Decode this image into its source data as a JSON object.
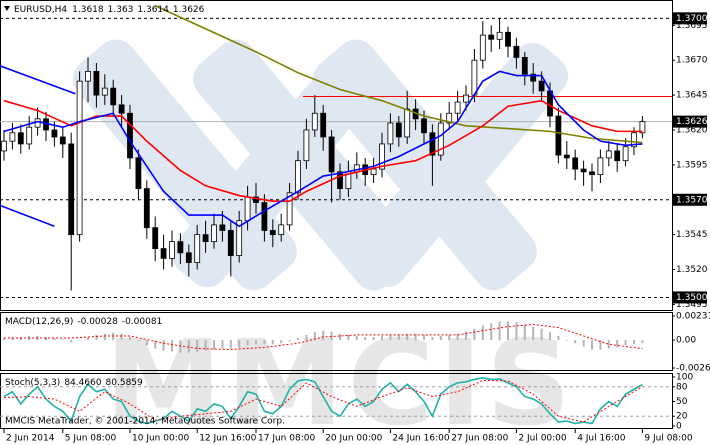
{
  "chart_data": [
    {
      "type": "candlestick",
      "title": "EURUSD,H4",
      "watermark": "MMCIS",
      "categories": [
        "2 Jun 2014",
        null,
        null,
        null,
        null,
        null,
        null,
        "5 Jun 08:00",
        null,
        null,
        null,
        null,
        null,
        null,
        null,
        "10 Jun 00:00",
        null,
        null,
        null,
        null,
        null,
        null,
        null,
        "12 Jun 16:00",
        null,
        null,
        null,
        null,
        null,
        null,
        "17 Jun 08:00",
        null,
        null,
        null,
        null,
        null,
        null,
        null,
        "20 Jun 00:00",
        null,
        null,
        null,
        null,
        null,
        null,
        null,
        "24 Jun 16:00",
        null,
        null,
        null,
        null,
        null,
        null,
        "27 Jun 08:00",
        null,
        null,
        null,
        null,
        null,
        null,
        null,
        "2 Jul 00:00",
        null,
        null,
        null,
        null,
        null,
        null,
        "4 Jul 16:00",
        null,
        null,
        null,
        null,
        null,
        null,
        null,
        "9 Jul 08:00"
      ],
      "ohlc": [
        [
          1.3605,
          1.362,
          1.3598,
          1.3612
        ],
        [
          1.3612,
          1.3625,
          1.3606,
          1.3618
        ],
        [
          1.3618,
          1.3624,
          1.3603,
          1.361
        ],
        [
          1.361,
          1.363,
          1.3606,
          1.3622
        ],
        [
          1.3622,
          1.3636,
          1.3616,
          1.3628
        ],
        [
          1.3628,
          1.3633,
          1.3612,
          1.362
        ],
        [
          1.362,
          1.3626,
          1.3608,
          1.3615
        ],
        [
          1.3615,
          1.3622,
          1.36,
          1.361
        ],
        [
          1.361,
          1.3618,
          1.3505,
          1.3545
        ],
        [
          1.3545,
          1.3662,
          1.354,
          1.3655
        ],
        [
          1.3655,
          1.3672,
          1.364,
          1.3662
        ],
        [
          1.3662,
          1.3668,
          1.3636,
          1.3645
        ],
        [
          1.3645,
          1.366,
          1.3638,
          1.365
        ],
        [
          1.365,
          1.3656,
          1.363,
          1.3638
        ],
        [
          1.3638,
          1.3645,
          1.3622,
          1.3632
        ],
        [
          1.3632,
          1.3638,
          1.3592,
          1.36
        ],
        [
          1.36,
          1.3606,
          1.357,
          1.3578
        ],
        [
          1.3578,
          1.3584,
          1.3542,
          1.355
        ],
        [
          1.355,
          1.3558,
          1.3526,
          1.3535
        ],
        [
          1.3535,
          1.3545,
          1.352,
          1.3528
        ],
        [
          1.3528,
          1.3548,
          1.3522,
          1.354
        ],
        [
          1.354,
          1.3546,
          1.3524,
          1.3532
        ],
        [
          1.3532,
          1.3538,
          1.3515,
          1.3525
        ],
        [
          1.3525,
          1.3552,
          1.352,
          1.3545
        ],
        [
          1.3545,
          1.3555,
          1.3532,
          1.354
        ],
        [
          1.354,
          1.356,
          1.3535,
          1.3552
        ],
        [
          1.3552,
          1.3562,
          1.354,
          1.3548
        ],
        [
          1.3548,
          1.3555,
          1.3515,
          1.353
        ],
        [
          1.353,
          1.3562,
          1.3525,
          1.3555
        ],
        [
          1.3555,
          1.358,
          1.3548,
          1.3572
        ],
        [
          1.3572,
          1.3582,
          1.356,
          1.3568
        ],
        [
          1.3568,
          1.3574,
          1.354,
          1.3548
        ],
        [
          1.3548,
          1.3556,
          1.3536,
          1.3545
        ],
        [
          1.3545,
          1.356,
          1.354,
          1.3552
        ],
        [
          1.3552,
          1.3582,
          1.3548,
          1.3575
        ],
        [
          1.3575,
          1.3605,
          1.357,
          1.3598
        ],
        [
          1.3598,
          1.3628,
          1.3592,
          1.362
        ],
        [
          1.362,
          1.3645,
          1.3615,
          1.3632
        ],
        [
          1.3632,
          1.3638,
          1.3605,
          1.3615
        ],
        [
          1.3615,
          1.362,
          1.3568,
          1.359
        ],
        [
          1.359,
          1.3596,
          1.357,
          1.3578
        ],
        [
          1.3578,
          1.3598,
          1.3572,
          1.359
        ],
        [
          1.359,
          1.3604,
          1.3585,
          1.3595
        ],
        [
          1.3595,
          1.36,
          1.358,
          1.3588
        ],
        [
          1.3588,
          1.36,
          1.3582,
          1.3592
        ],
        [
          1.3592,
          1.3618,
          1.3586,
          1.361
        ],
        [
          1.361,
          1.3632,
          1.3604,
          1.3625
        ],
        [
          1.3625,
          1.363,
          1.3608,
          1.3615
        ],
        [
          1.3615,
          1.3648,
          1.361,
          1.3635
        ],
        [
          1.3635,
          1.3642,
          1.362,
          1.3628
        ],
        [
          1.3628,
          1.3634,
          1.361,
          1.3618
        ],
        [
          1.3618,
          1.3624,
          1.358,
          1.3602
        ],
        [
          1.3602,
          1.3632,
          1.3598,
          1.3625
        ],
        [
          1.3625,
          1.364,
          1.362,
          1.3632
        ],
        [
          1.3632,
          1.3648,
          1.3626,
          1.364
        ],
        [
          1.364,
          1.3652,
          1.3634,
          1.3645
        ],
        [
          1.3645,
          1.3678,
          1.364,
          1.367
        ],
        [
          1.367,
          1.3698,
          1.3664,
          1.3688
        ],
        [
          1.3688,
          1.3695,
          1.3676,
          1.3685
        ],
        [
          1.3685,
          1.37,
          1.3678,
          1.369
        ],
        [
          1.369,
          1.3694,
          1.3672,
          1.368
        ],
        [
          1.368,
          1.3686,
          1.3664,
          1.3672
        ],
        [
          1.3672,
          1.3676,
          1.3652,
          1.366
        ],
        [
          1.366,
          1.3668,
          1.3646,
          1.3655
        ],
        [
          1.3655,
          1.3662,
          1.364,
          1.3648
        ],
        [
          1.3648,
          1.3654,
          1.3622,
          1.363
        ],
        [
          1.363,
          1.3636,
          1.3596,
          1.3602
        ],
        [
          1.3602,
          1.3612,
          1.3592,
          1.36
        ],
        [
          1.36,
          1.3606,
          1.3584,
          1.3592
        ],
        [
          1.3592,
          1.3598,
          1.358,
          1.359
        ],
        [
          1.359,
          1.3596,
          1.3576,
          1.3588
        ],
        [
          1.3588,
          1.3606,
          1.3582,
          1.36
        ],
        [
          1.36,
          1.3612,
          1.3594,
          1.3605
        ],
        [
          1.3605,
          1.361,
          1.359,
          1.3598
        ],
        [
          1.3598,
          1.3614,
          1.3594,
          1.3608
        ],
        [
          1.3608,
          1.3622,
          1.3602,
          1.3618
        ],
        [
          1.3618,
          1.363,
          1.3614,
          1.3626
        ]
      ],
      "bull_color": "#ffffff",
      "bear_color": "#000000",
      "ylim": [
        1.3491,
        1.3711
      ],
      "yticks": [
        1.3695,
        {
          "value": 1.367,
          "label": "1.3670"
        },
        1.3645,
        {
          "value": 1.362,
          "label": "1.3620"
        },
        1.3595,
        1.3545,
        {
          "value": 1.352,
          "label": "1.3520"
        },
        1.3495
      ],
      "lines": [
        {
          "color": "#808000",
          "x": [
            18,
            22,
            26,
            30,
            35,
            40,
            45,
            50,
            55,
            60,
            65,
            70,
            76
          ],
          "values": [
            1.3709,
            1.3698,
            1.3687,
            1.3676,
            1.3661,
            1.3649,
            1.3641,
            1.363,
            1.3623,
            1.3621,
            1.3619,
            1.3614,
            1.3611
          ]
        },
        {
          "color": "#ff0000",
          "x": [
            0,
            4,
            8,
            11,
            14,
            17,
            21,
            24,
            28,
            32,
            34,
            36,
            40,
            45,
            49,
            53,
            57,
            60,
            64,
            66,
            70,
            73,
            76
          ],
          "values": [
            1.3641,
            1.3634,
            1.3623,
            1.363,
            1.363,
            1.3612,
            1.3591,
            1.358,
            1.3573,
            1.3569,
            1.3569,
            1.3576,
            1.3587,
            1.3594,
            1.3598,
            1.3609,
            1.3623,
            1.3637,
            1.3641,
            1.3634,
            1.3623,
            1.3619,
            1.3619
          ]
        },
        {
          "color": "#0000ff",
          "x": [
            0,
            4,
            7,
            9,
            13,
            15,
            19,
            22,
            26,
            28,
            31,
            33,
            35,
            38,
            40,
            44,
            47,
            52,
            54,
            57,
            59,
            61,
            64,
            66,
            69,
            71,
            74,
            76
          ],
          "values": [
            1.3619,
            1.3626,
            1.3622,
            1.3626,
            1.3632,
            1.3612,
            1.3576,
            1.3559,
            1.3559,
            1.3551,
            1.3562,
            1.3569,
            1.3576,
            1.3587,
            1.3589,
            1.3594,
            1.3601,
            1.3616,
            1.3626,
            1.3655,
            1.3662,
            1.3659,
            1.3659,
            1.3638,
            1.362,
            1.3612,
            1.3609,
            1.361
          ]
        }
      ],
      "trendlines": [
        {
          "color": "#0000ff",
          "x": [
            -0.5,
            8.5
          ],
          "values": [
            1.3666,
            1.3646
          ]
        },
        {
          "color": "#0000ff",
          "x": [
            -0.5,
            6
          ],
          "values": [
            1.3566,
            1.3551
          ]
        }
      ],
      "hlines": [
        {
          "value": 1.37,
          "label": "1.3700",
          "color": "#000000",
          "dash": true
        },
        {
          "value": 1.357,
          "label": "1.3570",
          "color": "#000000",
          "dash": true
        },
        {
          "value": 1.35,
          "label": "1.3500",
          "color": "#000000",
          "dash": true
        },
        {
          "value": 1.3644,
          "color": "#ff0000",
          "dash": false,
          "from": 35.6
        }
      ]
    },
    {
      "type": "macd",
      "title": "MACD(12,26,9)",
      "series": [
        {
          "kind": "bar",
          "color": "#b4b4b4",
          "values": [
            0.0002,
            0.0003,
            0.0003,
            0.0004,
            0.0004,
            0.0003,
            0.0002,
            0.0001,
            -0.0002,
            0,
            0.0003,
            0.0005,
            0.0006,
            0.0007,
            0.0006,
            0.0003,
            -0.0001,
            -0.0005,
            -0.0008,
            -0.001,
            -0.0011,
            -0.0012,
            -0.0012,
            -0.0011,
            -0.001,
            -0.0009,
            -0.0008,
            -0.0008,
            -0.0007,
            -0.0005,
            -0.0004,
            -0.0004,
            -0.0004,
            -0.0003,
            -0.0001,
            0.0002,
            0.0005,
            0.0008,
            0.0009,
            0.0008,
            0.0006,
            0.0005,
            0.0004,
            0.0003,
            0.0003,
            0.0004,
            0.0005,
            0.0005,
            0.0006,
            0.0006,
            0.0005,
            0.0003,
            0.0004,
            0.0005,
            0.0006,
            0.0008,
            0.0011,
            0.0014,
            0.0016,
            0.0018,
            0.0018,
            0.0017,
            0.0015,
            0.0013,
            0.0011,
            0.0008,
            0.0004,
            0,
            -0.0003,
            -0.0006,
            -0.0009,
            -0.0009,
            -0.0008,
            -0.0007,
            -0.0005,
            -0.0004,
            -0.00028
          ]
        },
        {
          "kind": "line",
          "color": "#ff0000",
          "dash": true,
          "x": [
            0,
            8,
            12,
            15,
            19,
            23,
            27,
            31,
            35,
            38,
            42,
            46,
            50,
            54,
            57,
            60,
            63,
            66,
            69,
            72,
            76
          ],
          "values": [
            0.0002,
            0.0002,
            0.0004,
            0.0004,
            -0.0003,
            -0.0008,
            -0.0009,
            -0.0007,
            -0.0003,
            0.0003,
            0.0005,
            0.0005,
            0.0005,
            0.0005,
            0.0009,
            0.0013,
            0.0015,
            0.0012,
            0.0004,
            -0.0004,
            -0.00081
          ]
        }
      ],
      "ylim": [
        -0.00267,
        0.00231
      ],
      "yticks": [
        0.00231,
        {
          "value": 0,
          "label": "0.00"
        },
        -0.00267
      ]
    },
    {
      "type": "stochastic",
      "title": "Stoch(5,3,3)",
      "annotation": "MMCIS MetaTrader, © 2001-2014, MetaQuotes Software Corp.",
      "series": [
        {
          "kind": "line",
          "color": "#20b2aa",
          "dash": false,
          "values": [
            60,
            70,
            45,
            65,
            80,
            55,
            40,
            30,
            10,
            60,
            85,
            70,
            75,
            55,
            50,
            20,
            10,
            5,
            10,
            15,
            30,
            20,
            10,
            35,
            30,
            45,
            40,
            15,
            40,
            70,
            65,
            30,
            25,
            40,
            75,
            92,
            95,
            90,
            60,
            30,
            20,
            45,
            55,
            40,
            50,
            75,
            88,
            70,
            85,
            70,
            50,
            20,
            65,
            80,
            88,
            90,
            95,
            98,
            95,
            96,
            88,
            80,
            60,
            55,
            45,
            25,
            8,
            10,
            5,
            8,
            5,
            35,
            50,
            40,
            65,
            75,
            84.466
          ],
          "value_labels": [
            null,
            null,
            null,
            null,
            null,
            null,
            null,
            null,
            null,
            null,
            null,
            null,
            null,
            null,
            null,
            null,
            null,
            null,
            null,
            null,
            null,
            null,
            null,
            null,
            null,
            null,
            null,
            null,
            null,
            null,
            null,
            null,
            null,
            null,
            null,
            null,
            null,
            null,
            null,
            null,
            null,
            null,
            null,
            null,
            null,
            null,
            null,
            null,
            null,
            null,
            null,
            null,
            null,
            null,
            null,
            null,
            null,
            null,
            null,
            null,
            null,
            null,
            null,
            null,
            null,
            null,
            null,
            null,
            null,
            null,
            null,
            null,
            null,
            null,
            null,
            null,
            "84.4660"
          ]
        },
        {
          "kind": "line",
          "color": "#ff0000",
          "dash": true,
          "x": [
            0,
            3,
            6,
            9,
            12,
            15,
            18,
            21,
            24,
            27,
            30,
            33,
            36,
            39,
            42,
            45,
            48,
            51,
            54,
            57,
            60,
            63,
            66,
            69,
            72,
            76
          ],
          "values": [
            58,
            60,
            55,
            30,
            70,
            45,
            12,
            20,
            25,
            30,
            55,
            40,
            88,
            60,
            40,
            60,
            78,
            60,
            70,
            93,
            92,
            65,
            20,
            8,
            40,
            80.5859
          ]
        }
      ],
      "levels": [
        80,
        20
      ],
      "ylim": [
        0,
        100
      ],
      "yticks": [
        100,
        80,
        50,
        20,
        0
      ]
    }
  ]
}
